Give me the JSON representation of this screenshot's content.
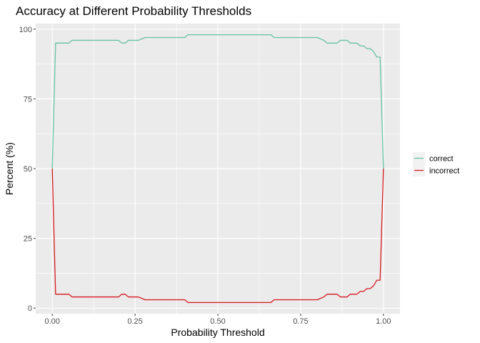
{
  "chart_data": {
    "type": "line",
    "title": "Accuracy at Different Probability Thresholds",
    "xlabel": "Probability Threshold",
    "ylabel": "Percent (%)",
    "xlim": [
      -0.05,
      1.05
    ],
    "ylim": [
      -2,
      102
    ],
    "x_ticks": [
      0,
      0.25,
      0.5,
      0.75,
      1
    ],
    "x_tick_labels": [
      "0.00",
      "0.25",
      "0.50",
      "0.75",
      "1.00"
    ],
    "y_ticks": [
      0,
      25,
      50,
      75,
      100
    ],
    "y_tick_labels": [
      "0",
      "25",
      "50",
      "75",
      "100"
    ],
    "grid": true,
    "legend_position": "right",
    "series": [
      {
        "name": "correct",
        "color": "#66c2a5",
        "points": [
          [
            0.0,
            50
          ],
          [
            0.01,
            95
          ],
          [
            0.05,
            95
          ],
          [
            0.06,
            96
          ],
          [
            0.2,
            96
          ],
          [
            0.21,
            95
          ],
          [
            0.22,
            95
          ],
          [
            0.23,
            96
          ],
          [
            0.26,
            96
          ],
          [
            0.27,
            96.5
          ],
          [
            0.28,
            97
          ],
          [
            0.4,
            97
          ],
          [
            0.41,
            98
          ],
          [
            0.66,
            98
          ],
          [
            0.67,
            97
          ],
          [
            0.8,
            97
          ],
          [
            0.81,
            96.5
          ],
          [
            0.82,
            96
          ],
          [
            0.83,
            95
          ],
          [
            0.86,
            95
          ],
          [
            0.87,
            96
          ],
          [
            0.89,
            96
          ],
          [
            0.9,
            95
          ],
          [
            0.92,
            95
          ],
          [
            0.93,
            94
          ],
          [
            0.94,
            94
          ],
          [
            0.95,
            93
          ],
          [
            0.96,
            93
          ],
          [
            0.97,
            92
          ],
          [
            0.98,
            90
          ],
          [
            0.99,
            90
          ],
          [
            1.0,
            50
          ]
        ]
      },
      {
        "name": "incorrect",
        "color": "#d7191c",
        "points": [
          [
            0.0,
            50
          ],
          [
            0.01,
            5
          ],
          [
            0.05,
            5
          ],
          [
            0.06,
            4
          ],
          [
            0.2,
            4
          ],
          [
            0.21,
            5
          ],
          [
            0.22,
            5
          ],
          [
            0.23,
            4
          ],
          [
            0.26,
            4
          ],
          [
            0.27,
            3.5
          ],
          [
            0.28,
            3
          ],
          [
            0.4,
            3
          ],
          [
            0.41,
            2
          ],
          [
            0.66,
            2
          ],
          [
            0.67,
            3
          ],
          [
            0.8,
            3
          ],
          [
            0.81,
            3.5
          ],
          [
            0.82,
            4
          ],
          [
            0.83,
            5
          ],
          [
            0.86,
            5
          ],
          [
            0.87,
            4
          ],
          [
            0.89,
            4
          ],
          [
            0.9,
            5
          ],
          [
            0.92,
            5
          ],
          [
            0.93,
            6
          ],
          [
            0.94,
            6
          ],
          [
            0.95,
            7
          ],
          [
            0.96,
            7
          ],
          [
            0.97,
            8
          ],
          [
            0.98,
            10
          ],
          [
            0.99,
            10
          ],
          [
            1.0,
            50
          ]
        ]
      }
    ]
  }
}
